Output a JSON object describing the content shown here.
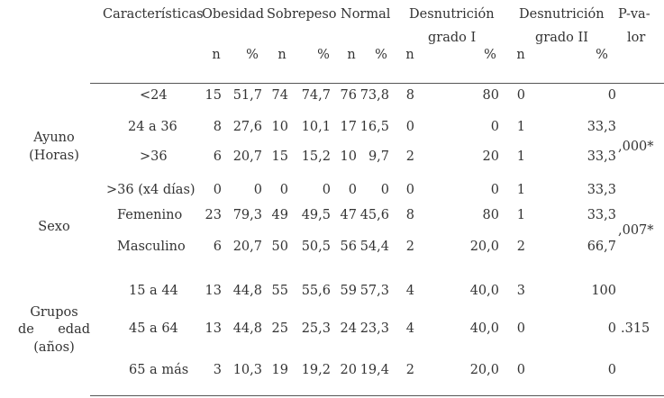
{
  "headers": {
    "caracteristicas": "Características",
    "obesidad": "Obesidad",
    "sobrepeso": "Sobrepeso",
    "normal": "Normal",
    "desn1_line1": "Desnutrición",
    "desn1_line2": "grado I",
    "desn2_line1": "Desnutrición",
    "desn2_line2": "grado II",
    "pvalor_line1": "P-va-",
    "pvalor_line2": "lor",
    "n": "n",
    "pct": "%"
  },
  "groups": [
    {
      "label": [
        "Ayuno",
        "(Horas)"
      ],
      "p_value": ",000*"
    },
    {
      "label": [
        "Sexo"
      ],
      "p_value": ",007*"
    },
    {
      "label": [
        "Grupos",
        "de",
        "edad",
        "(años)"
      ],
      "p_value": ".315"
    }
  ],
  "rows": [
    {
      "label": "<24",
      "cells": [
        "15",
        "51,7",
        "74",
        "74,7",
        "76",
        "73,8",
        "8",
        "80",
        "0",
        "0"
      ]
    },
    {
      "label": "24 a 36",
      "cells": [
        "8",
        "27,6",
        "10",
        "10,1",
        "17",
        "16,5",
        "0",
        "0",
        "1",
        "33,3"
      ]
    },
    {
      "label": ">36",
      "cells": [
        "6",
        "20,7",
        "15",
        "15,2",
        "10",
        "9,7",
        "2",
        "20",
        "1",
        "33,3"
      ]
    },
    {
      "label": ">36 (x4 días)",
      "cells": [
        "0",
        "0",
        "0",
        "0",
        "0",
        "0",
        "0",
        "0",
        "1",
        "33,3"
      ]
    },
    {
      "label": "Femenino",
      "cells": [
        "23",
        "79,3",
        "49",
        "49,5",
        "47",
        "45,6",
        "8",
        "80",
        "1",
        "33,3"
      ]
    },
    {
      "label": "Masculino",
      "cells": [
        "6",
        "20,7",
        "50",
        "50,5",
        "56",
        "54,4",
        "2",
        "20,0",
        "2",
        "66,7"
      ]
    },
    {
      "label": "15 a 44",
      "cells": [
        "13",
        "44,8",
        "55",
        "55,6",
        "59",
        "57,3",
        "4",
        "40,0",
        "3",
        "100"
      ]
    },
    {
      "label": "45 a 64",
      "cells": [
        "13",
        "44,8",
        "25",
        "25,3",
        "24",
        "23,3",
        "4",
        "40,0",
        "0",
        "0"
      ]
    },
    {
      "label": "65 a más",
      "cells": [
        "3",
        "10,3",
        "19",
        "19,2",
        "20",
        "19,4",
        "2",
        "20,0",
        "0",
        "0"
      ]
    }
  ]
}
